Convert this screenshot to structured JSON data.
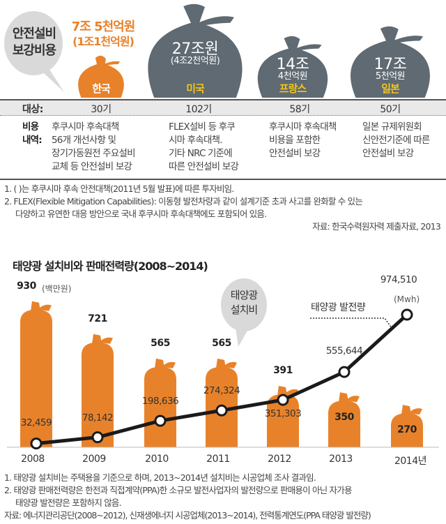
{
  "top": {
    "bubble": [
      "안전설비",
      "보강비용"
    ],
    "countries": [
      {
        "name": "한국",
        "amount": "7조 5천억원",
        "sub": "(1조1천억원)",
        "target": "30기",
        "desc": [
          "후쿠시마 후속대책",
          "56개 개선사항 및",
          "장기가동원전 주요설비",
          "교체 등 안전설비 보강"
        ]
      },
      {
        "name": "미국",
        "amount": "27조원",
        "sub": "(4조2천억원)",
        "target": "102기",
        "desc": [
          "FLEX설비 등 후쿠",
          "시마 후속대책.",
          "기타 NRC 기준에",
          "따른 안전설비 보강"
        ]
      },
      {
        "name": "프랑스",
        "amount": "14조",
        "sub": "4천억원",
        "target": "58기",
        "desc": [
          "후쿠시마 후속대책",
          "비용을 포함한",
          "안전설비 보강"
        ]
      },
      {
        "name": "일본",
        "amount": "17조",
        "sub": "5천억원",
        "target": "50기",
        "desc": [
          "일본 규제위원회",
          "신안전기준에 따른",
          "안전설비 보강"
        ]
      }
    ],
    "target_label": "대상:",
    "desc_label": [
      "비용",
      "내역:"
    ],
    "notes": [
      "1. ( )는 후쿠시마 후속 안전대책(2011년 5월 발표)에 따른 투자비임.",
      "2. FLEX(Flexible Mitigation Capabilities): 이동형 발전차량과 같이 설계기준 초과 사고를 완화할 수 있는",
      "다양하고 유연한 대응 방안으로 국내 후쿠시마 후속대책에도 포함되어 있음."
    ],
    "source": "자료: 한국수력원자력 제출자료, 2013",
    "colors": {
      "orange": "#e8822a",
      "gray": "#5f6a72",
      "yellow": "#f5c518"
    }
  },
  "chart_data": {
    "type": "bar",
    "title": "태양광 설치비와 판매전력량(2008~2014)",
    "categories": [
      "2008",
      "2009",
      "2010",
      "2011",
      "2012",
      "2013",
      "2014년"
    ],
    "series": [
      {
        "name": "태양광 설치비",
        "unit": "(백만원)",
        "type": "bar",
        "values": [
          930,
          721,
          565,
          565,
          391,
          350,
          270
        ],
        "labels": [
          "930",
          "721",
          "565",
          "565",
          "391",
          "350",
          "270"
        ]
      },
      {
        "name": "태양광 발전량",
        "unit": "(Mwh)",
        "type": "line",
        "values": [
          32459,
          78142,
          198636,
          274324,
          351303,
          555644,
          974510
        ],
        "labels": [
          "32,459",
          "78,142",
          "198,636",
          "274,324",
          "351,303",
          "555,644",
          "974,510"
        ]
      }
    ],
    "bubble": [
      "태양광",
      "설치비"
    ],
    "line_label": "태양광 발전량",
    "notes": [
      "1. 태양광 설치비는 주택용을 기준으로 하며, 2013~2014년 설치비는 시공업체 조사 결과임.",
      "2. 태양광 판매전력량은 한전과 직접계약(PPA)한 소규모 발전사업자의 발전량으로 판매용이 아닌 자가용",
      "태양광 발전량은 포함하지 않음."
    ],
    "source": "자료: 에너지관리공단(2008~2012), 신재생에너지 시공업체(2013~2014), 전력통계연도(PPA 태양광 발전량)"
  }
}
